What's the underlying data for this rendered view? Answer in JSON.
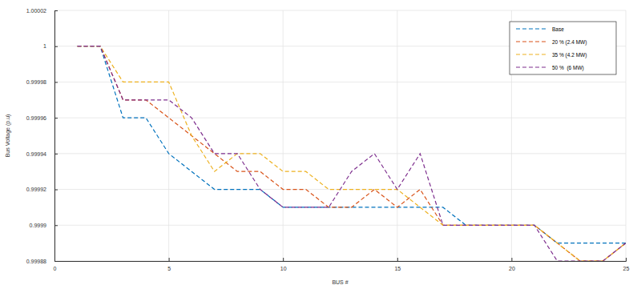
{
  "chart_data": {
    "type": "line",
    "x_label": "BUS #",
    "y_label": "Bus Voltage (p.u)",
    "x": [
      1,
      2,
      3,
      4,
      5,
      6,
      7,
      8,
      9,
      10,
      11,
      12,
      13,
      14,
      15,
      16,
      17,
      18,
      19,
      20,
      21,
      22,
      23,
      24,
      25
    ],
    "xlim": [
      0,
      25
    ],
    "xticks": [
      0,
      5,
      10,
      15,
      20,
      25
    ],
    "ylim": [
      0.99988,
      1.00002
    ],
    "yticks": [
      0.99988,
      0.9999,
      0.99992,
      0.99994,
      0.99996,
      0.99998,
      1,
      1.00002
    ],
    "grid": true,
    "legend": "upper right",
    "series": [
      {
        "name": "Base",
        "color": "#0072bd",
        "line_style": "dashed",
        "values": [
          1,
          1,
          0.99996,
          0.99996,
          0.99994,
          0.99993,
          0.99992,
          0.99992,
          0.99992,
          0.99991,
          0.99991,
          0.99991,
          0.99991,
          0.99991,
          0.99991,
          0.99991,
          0.99991,
          0.9999,
          0.9999,
          0.9999,
          0.9999,
          0.99989,
          0.99989,
          0.99989,
          0.99989
        ]
      },
      {
        "name": "20 % (2.4 MW)",
        "color": "#d95319",
        "line_style": "dashed",
        "values": [
          1,
          1,
          0.99997,
          0.99997,
          0.99996,
          0.99995,
          0.99994,
          0.99993,
          0.99993,
          0.99992,
          0.99992,
          0.99991,
          0.99991,
          0.99992,
          0.99991,
          0.99992,
          0.9999,
          0.9999,
          0.9999,
          0.9999,
          0.9999,
          0.99989,
          0.99988,
          0.99988,
          0.99989
        ]
      },
      {
        "name": "35 % (4.2 MW)",
        "color": "#edb120",
        "line_style": "dashed",
        "values": [
          1,
          1,
          0.99998,
          0.99998,
          0.99998,
          0.99995,
          0.99993,
          0.99994,
          0.99994,
          0.99993,
          0.99993,
          0.99992,
          0.99992,
          0.99992,
          0.99992,
          0.99991,
          0.9999,
          0.9999,
          0.9999,
          0.9999,
          0.9999,
          0.99989,
          0.99988,
          0.99988,
          0.99989
        ]
      },
      {
        "name": "50 %  (6 MW)",
        "color": "#7e2f8e",
        "line_style": "dashed",
        "values": [
          1,
          1,
          0.99997,
          0.99997,
          0.99997,
          0.99996,
          0.99994,
          0.99994,
          0.99992,
          0.99991,
          0.99991,
          0.99991,
          0.99993,
          0.99994,
          0.99992,
          0.99994,
          0.9999,
          0.9999,
          0.9999,
          0.9999,
          0.9999,
          0.99988,
          0.99988,
          0.99988,
          0.99989
        ]
      }
    ]
  }
}
